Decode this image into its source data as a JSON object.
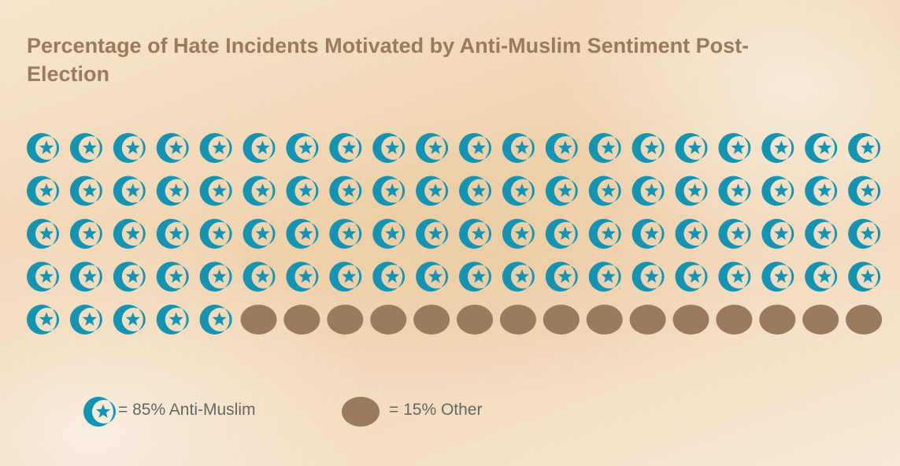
{
  "chart_data": {
    "type": "pictogram",
    "title": "Percentage of Hate Incidents Motivated by Anti-Muslim Sentiment Post-Election",
    "total_icons": 100,
    "series": [
      {
        "name": "Anti-Muslim",
        "value": 85,
        "icon": "crescent-star-icon",
        "color": "#1593b2"
      },
      {
        "name": "Other",
        "value": 15,
        "icon": "circle-icon",
        "color": "#9a7b5e"
      }
    ]
  },
  "legend": {
    "anti_muslim": "=  85% Anti-Muslim",
    "other": "=  15% Other"
  },
  "colors": {
    "title": "#9a7b5c",
    "legend_text": "#666666"
  }
}
